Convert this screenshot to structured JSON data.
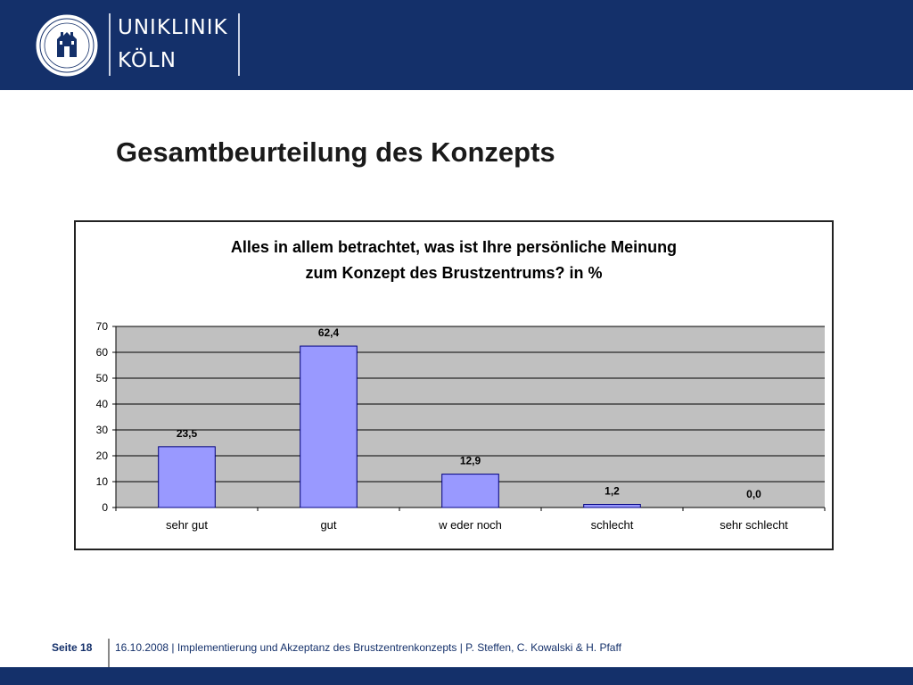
{
  "header": {
    "logo_line_1": "UNIKLINIK",
    "logo_line_2": "KÖLN",
    "colors": {
      "background": "#14306a",
      "text": "#ffffff"
    }
  },
  "slide": {
    "title": "Gesamtbeurteilung des Konzepts"
  },
  "chart_data": {
    "type": "bar",
    "title_lines": [
      "Alles in allem betrachtet, was ist Ihre persönliche Meinung",
      "zum Konzept des Brustzentrums? in %"
    ],
    "categories": [
      "sehr gut",
      "gut",
      "w eder noch",
      "schlecht",
      "sehr schlecht"
    ],
    "values": [
      23.5,
      62.4,
      12.9,
      1.2,
      0.0
    ],
    "value_labels": [
      "23,5",
      "62,4",
      "12,9",
      "1,2",
      "0,0"
    ],
    "ylim": [
      0,
      70
    ],
    "yticks": [
      "0",
      "10",
      "20",
      "30",
      "40",
      "50",
      "60",
      "70"
    ],
    "grid": true,
    "legend": "none",
    "colors": {
      "bar_fill": "#9999ff",
      "bar_stroke": "#000080",
      "plot_background": "#c0c0c0"
    }
  },
  "footer": {
    "page_label": "Seite 18",
    "info": "16.10.2008 | Implementierung und Akzeptanz des Brustzentrenkonzepts | P. Steffen, C. Kowalski & H. Pfaff"
  }
}
